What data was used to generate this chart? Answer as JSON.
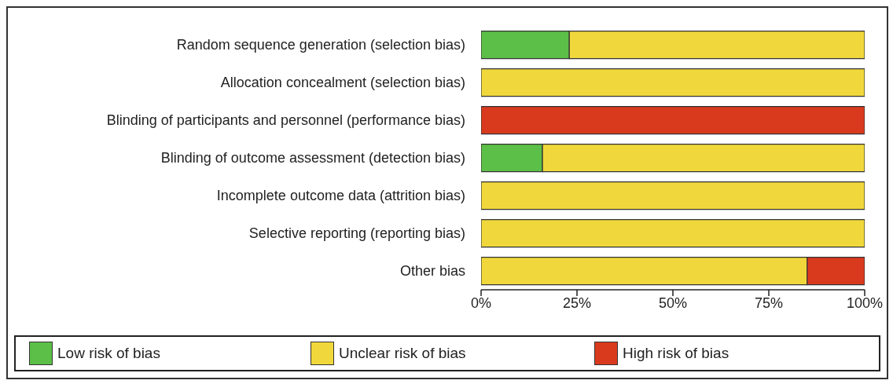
{
  "chart_data": {
    "type": "bar",
    "orientation": "horizontal",
    "stacked": true,
    "categories": [
      "Random sequence generation (selection bias)",
      "Allocation concealment (selection bias)",
      "Blinding of participants and personnel (performance bias)",
      "Blinding of outcome assessment (detection bias)",
      "Incomplete outcome data (attrition bias)",
      "Selective reporting (reporting bias)",
      "Other bias"
    ],
    "series": [
      {
        "name": "Low risk of bias",
        "color": "#5cbf47",
        "values": [
          23,
          0,
          0,
          16,
          0,
          0,
          0
        ]
      },
      {
        "name": "Unclear risk of bias",
        "color": "#f0d83c",
        "values": [
          77,
          100,
          0,
          84,
          100,
          100,
          85
        ]
      },
      {
        "name": "High risk of bias",
        "color": "#d93a1e",
        "values": [
          0,
          0,
          100,
          0,
          0,
          0,
          15
        ]
      }
    ],
    "xlim": [
      0,
      100
    ],
    "xticks": [
      {
        "value": 0,
        "label": "0%"
      },
      {
        "value": 25,
        "label": "25%"
      },
      {
        "value": 50,
        "label": "50%"
      },
      {
        "value": 75,
        "label": "75%"
      },
      {
        "value": 100,
        "label": "100%"
      }
    ],
    "grid": false,
    "legend": "bottom"
  }
}
